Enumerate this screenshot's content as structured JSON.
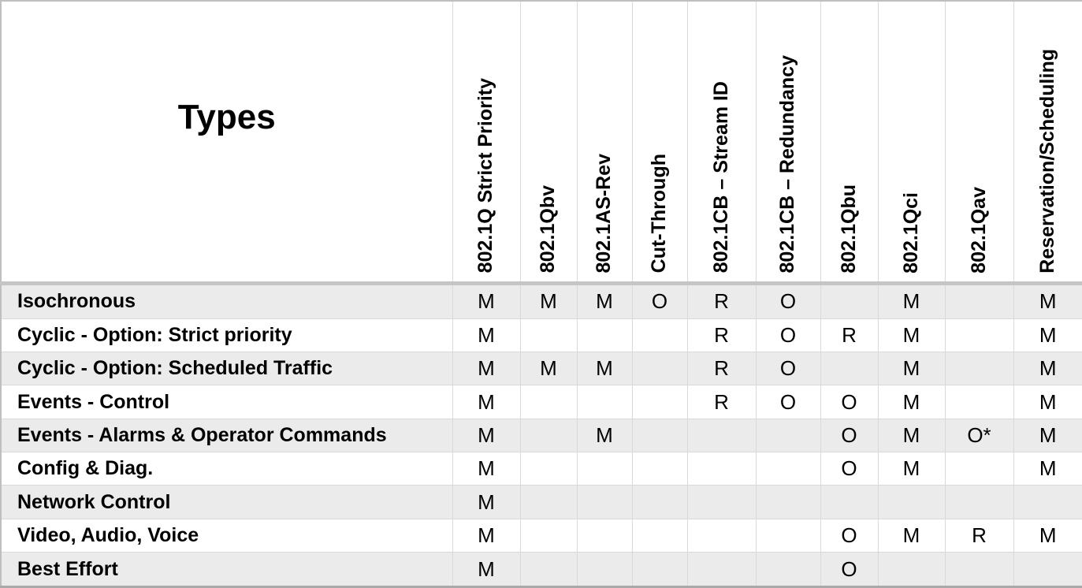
{
  "table": {
    "corner_label": "Types",
    "columns": [
      "802.1Q Strict Priority",
      "802.1Qbv",
      "802.1AS-Rev",
      "Cut-Through",
      "802.1CB – Stream ID",
      "802.1CB – Redundancy",
      "802.1Qbu",
      "802.1Qci",
      "802.1Qav",
      "Reservation/Scheduling"
    ],
    "rows": [
      {
        "label": "Isochronous",
        "values": [
          "M",
          "M",
          "M",
          "O",
          "R",
          "O",
          "",
          "M",
          "",
          "M"
        ]
      },
      {
        "label": "Cyclic - Option: Strict priority",
        "values": [
          "M",
          "",
          "",
          "",
          "R",
          "O",
          "R",
          "M",
          "",
          "M"
        ]
      },
      {
        "label": "Cyclic - Option: Scheduled Traffic",
        "values": [
          "M",
          "M",
          "M",
          "",
          "R",
          "O",
          "",
          "M",
          "",
          "M"
        ]
      },
      {
        "label": "Events - Control",
        "values": [
          "M",
          "",
          "",
          "",
          "R",
          "O",
          "O",
          "M",
          "",
          "M"
        ]
      },
      {
        "label": "Events - Alarms & Operator Commands",
        "values": [
          "M",
          "",
          "M",
          "",
          "",
          "",
          "O",
          "M",
          "O*",
          "M"
        ]
      },
      {
        "label": "Config & Diag.",
        "values": [
          "M",
          "",
          "",
          "",
          "",
          "",
          "O",
          "M",
          "",
          "M"
        ]
      },
      {
        "label": "Network Control",
        "values": [
          "M",
          "",
          "",
          "",
          "",
          "",
          "",
          "",
          "",
          ""
        ]
      },
      {
        "label": "Video, Audio, Voice",
        "values": [
          "M",
          "",
          "",
          "",
          "",
          "",
          "O",
          "M",
          "R",
          "M"
        ]
      },
      {
        "label": "Best Effort",
        "values": [
          "M",
          "",
          "",
          "",
          "",
          "",
          "O",
          "",
          "",
          ""
        ]
      }
    ]
  },
  "colors": {
    "stripe": "#ebebeb",
    "grid": "#d9d9d9",
    "separator": "#c5c5c5",
    "outer-border": "#bfbfbf",
    "bottom-border": "#a9a9a9",
    "text": "#000000"
  }
}
